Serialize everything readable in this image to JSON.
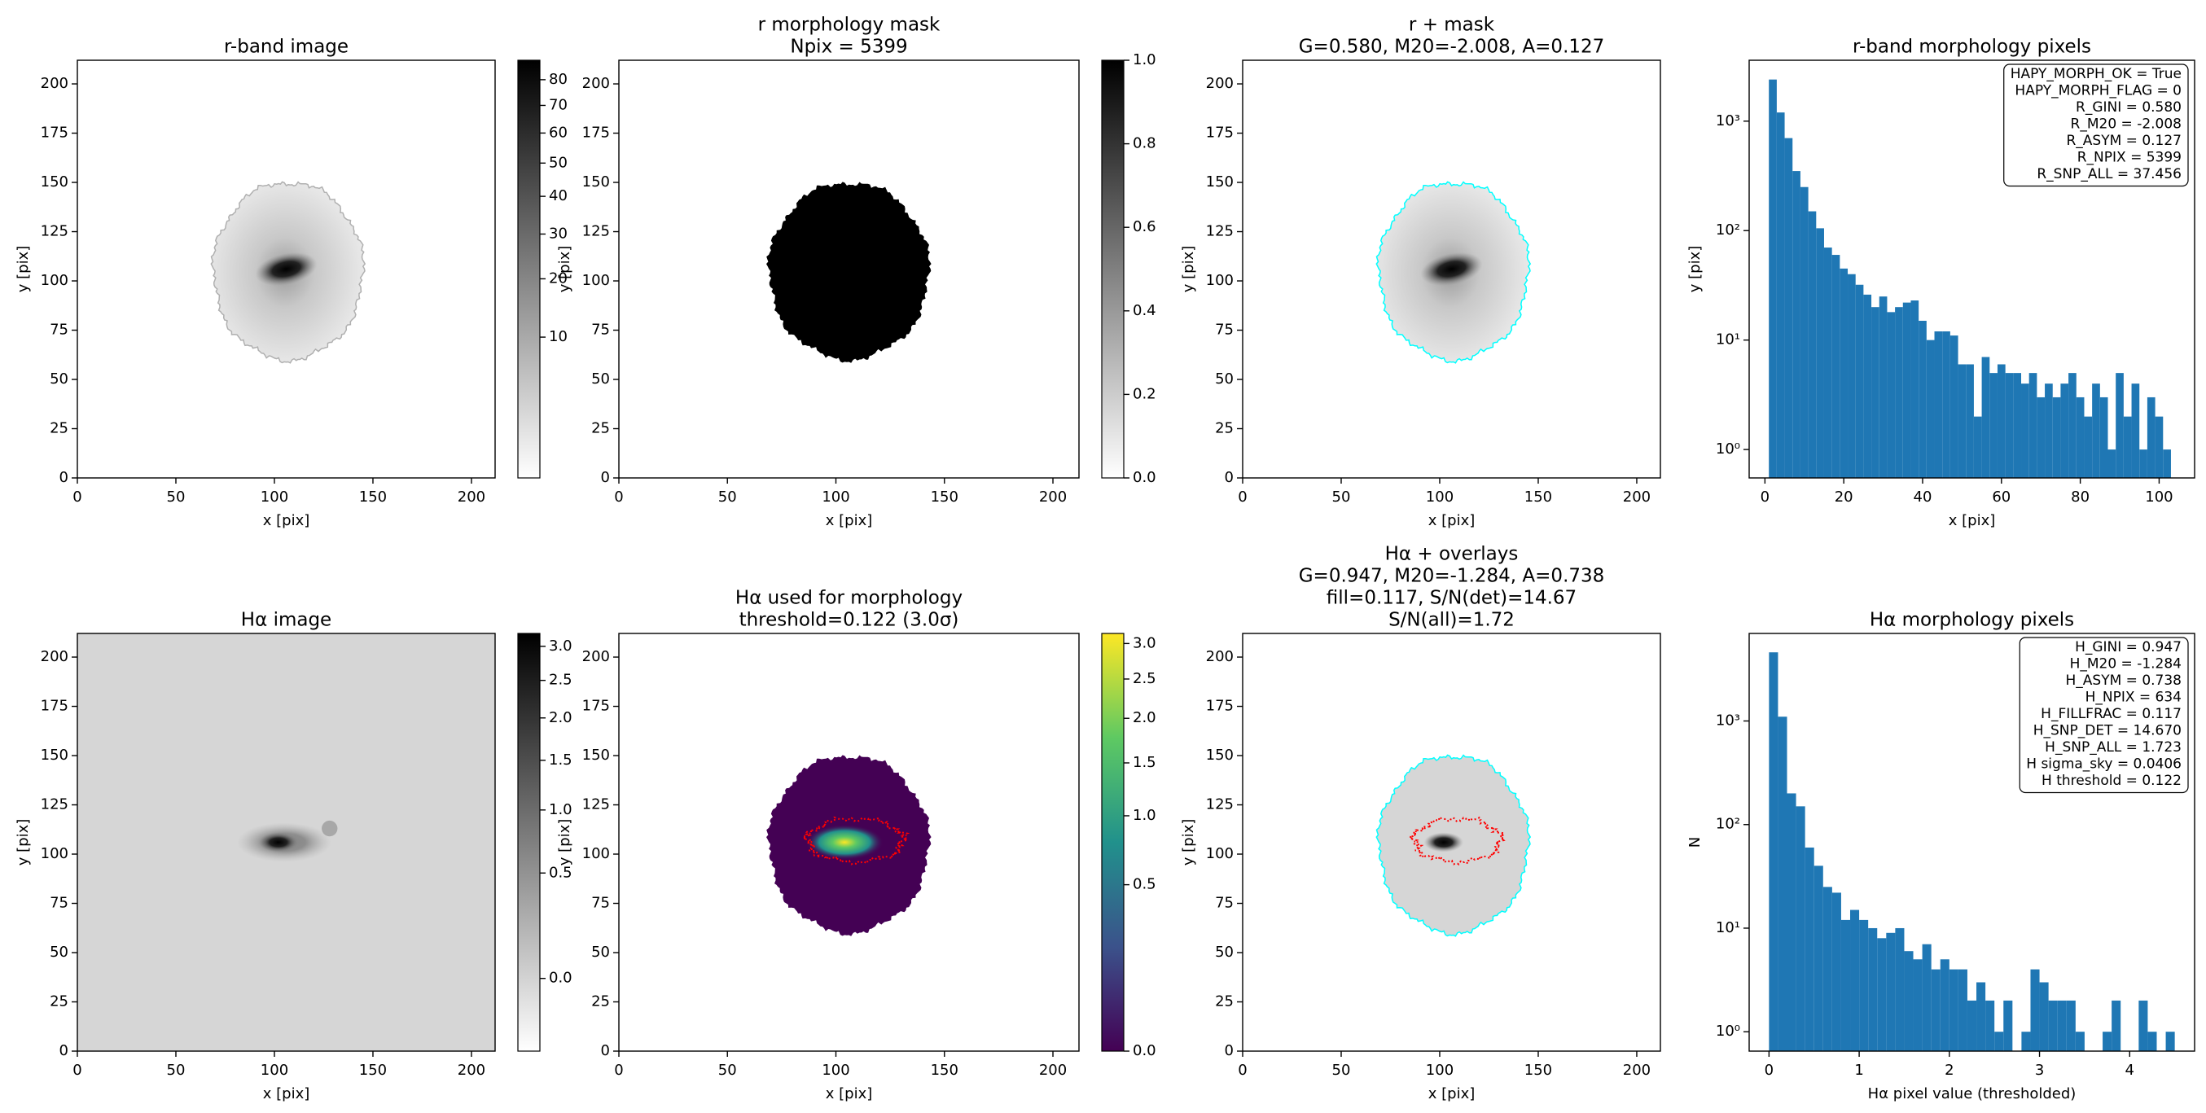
{
  "chart_data": [
    {
      "type": "image",
      "title_lines": [
        "r-band image"
      ],
      "xlabel": "x [pix]",
      "ylabel": "y [pix]",
      "xlim": [
        0,
        212
      ],
      "ylim": [
        0,
        212
      ],
      "xticks": [
        0,
        50,
        100,
        150,
        200
      ],
      "yticks": [
        0,
        25,
        50,
        75,
        100,
        125,
        150,
        175,
        200
      ],
      "cmap": "gray_r",
      "colorbar": {
        "lim": [
          0,
          88
        ],
        "scale": "sqrt",
        "ticks": [
          10,
          20,
          30,
          40,
          50,
          60,
          70,
          80
        ]
      }
    },
    {
      "type": "image",
      "title_lines": [
        "r morphology mask",
        "Npix = 5399"
      ],
      "xlabel": "x [pix]",
      "ylabel": "y [pix]",
      "xlim": [
        0,
        212
      ],
      "ylim": [
        0,
        212
      ],
      "xticks": [
        0,
        50,
        100,
        150,
        200
      ],
      "yticks": [
        0,
        25,
        50,
        75,
        100,
        125,
        150,
        175,
        200
      ],
      "cmap": "gray_r",
      "colorbar": {
        "lim": [
          0,
          1
        ],
        "scale": "linear",
        "ticks": [
          {
            "value": 0,
            "label": "0.0"
          },
          0.2,
          0.4,
          0.6,
          0.8,
          {
            "value": 1,
            "label": "1.0"
          }
        ]
      }
    },
    {
      "type": "image",
      "title_lines": [
        "r + mask",
        "G=0.580, M20=-2.008, A=0.127"
      ],
      "xlabel": "x [pix]",
      "ylabel": "y [pix]",
      "xlim": [
        0,
        212
      ],
      "ylim": [
        0,
        212
      ],
      "xticks": [
        0,
        50,
        100,
        150,
        200
      ],
      "yticks": [
        0,
        25,
        50,
        75,
        100,
        125,
        150,
        175,
        200
      ],
      "cmap": "gray_r",
      "contour_color": "#00ffff"
    },
    {
      "type": "histogram",
      "title_lines": [
        "r-band morphology pixels"
      ],
      "xlabel": "x [pix]",
      "ylabel": "y [pix]",
      "bins": [
        1,
        3,
        5,
        7,
        9,
        11,
        13,
        15,
        17,
        19,
        21,
        23,
        25,
        27,
        29,
        31,
        33,
        35,
        37,
        39,
        41,
        43,
        45,
        47,
        49,
        51,
        53,
        55,
        57,
        59,
        61,
        63,
        65,
        67,
        69,
        71,
        73,
        75,
        77,
        79,
        81,
        83,
        85,
        87,
        89,
        91,
        93,
        95,
        97,
        99,
        101,
        103
      ],
      "values": [
        2400,
        1200,
        700,
        350,
        250,
        150,
        105,
        70,
        60,
        45,
        40,
        32,
        26,
        20,
        25,
        18,
        20,
        22,
        23,
        15,
        10,
        12,
        12,
        11,
        6,
        6,
        2,
        7,
        5,
        6,
        5,
        5,
        4,
        5,
        3,
        4,
        3,
        4,
        5,
        3,
        2,
        4,
        3,
        1,
        5,
        2,
        4,
        1,
        3,
        2,
        1
      ],
      "color": "#1f77b4",
      "yscale": "log",
      "xlim": [
        -4,
        109
      ],
      "ylim": [
        0.55,
        3600
      ],
      "xticks": [
        0,
        20,
        40,
        60,
        80,
        100
      ],
      "yticks": [
        {
          "value": 1,
          "label": "10⁰"
        },
        {
          "value": 10,
          "label": "10¹"
        },
        {
          "value": 100,
          "label": "10²"
        },
        {
          "value": 1000,
          "label": "10³"
        }
      ],
      "annotation_lines": [
        "HAPY_MORPH_OK = True",
        "HAPY_MORPH_FLAG = 0",
        "R_GINI = 0.580",
        "R_M20 = -2.008",
        "R_ASYM = 0.127",
        "R_NPIX = 5399",
        "R_SNP_ALL = 37.456"
      ]
    },
    {
      "type": "image",
      "title_lines": [
        "Hα image"
      ],
      "xlabel": "x [pix]",
      "ylabel": "y [pix]",
      "xlim": [
        0,
        212
      ],
      "ylim": [
        0,
        212
      ],
      "xticks": [
        0,
        50,
        100,
        150,
        200
      ],
      "yticks": [
        0,
        25,
        50,
        75,
        100,
        125,
        150,
        175,
        200
      ],
      "cmap": "gray_r",
      "colorbar": {
        "lim": [
          -0.1,
          3.2
        ],
        "scale": "sqrt",
        "ticks": [
          {
            "value": 0,
            "label": "0.0"
          },
          0.5,
          {
            "value": 1,
            "label": "1.0"
          },
          1.5,
          {
            "value": 2,
            "label": "2.0"
          },
          2.5,
          {
            "value": 3,
            "label": "3.0"
          }
        ]
      }
    },
    {
      "type": "image",
      "title_lines": [
        "Hα used for morphology",
        "threshold=0.122 (3.0σ)"
      ],
      "xlabel": "x [pix]",
      "ylabel": "y [pix]",
      "xlim": [
        0,
        212
      ],
      "ylim": [
        0,
        212
      ],
      "xticks": [
        0,
        50,
        100,
        150,
        200
      ],
      "yticks": [
        0,
        25,
        50,
        75,
        100,
        125,
        150,
        175,
        200
      ],
      "cmap": "viridis",
      "contour_color": "#ff0000",
      "colorbar": {
        "lim": [
          0,
          3.15
        ],
        "scale": "sqrt",
        "ticks": [
          {
            "value": 0,
            "label": "0.0"
          },
          0.5,
          {
            "value": 1,
            "label": "1.0"
          },
          1.5,
          {
            "value": 2,
            "label": "2.0"
          },
          2.5,
          {
            "value": 3,
            "label": "3.0"
          }
        ]
      }
    },
    {
      "type": "image",
      "title_lines": [
        "Hα + overlays",
        "G=0.947, M20=-1.284, A=0.738",
        "fill=0.117, S/N(det)=14.67",
        "S/N(all)=1.72"
      ],
      "xlabel": "x [pix]",
      "ylabel": "y [pix]",
      "xlim": [
        0,
        212
      ],
      "ylim": [
        0,
        212
      ],
      "xticks": [
        0,
        50,
        100,
        150,
        200
      ],
      "yticks": [
        0,
        25,
        50,
        75,
        100,
        125,
        150,
        175,
        200
      ],
      "cmap": "gray_r",
      "contour_color": "#00ffff"
    },
    {
      "type": "histogram",
      "title_lines": [
        "Hα morphology pixels"
      ],
      "xlabel": "Hα pixel value (thresholded)",
      "ylabel": "N",
      "bins": [
        0,
        0.1,
        0.2,
        0.3,
        0.4,
        0.5,
        0.6,
        0.7,
        0.8,
        0.9,
        1,
        1.1,
        1.2,
        1.3,
        1.4,
        1.5,
        1.6,
        1.7,
        1.8,
        1.9,
        2,
        2.1,
        2.2,
        2.3,
        2.4,
        2.5,
        2.6,
        2.7,
        2.8,
        2.9,
        3,
        3.1,
        3.2,
        3.3,
        3.4,
        3.5,
        3.6,
        3.7,
        3.8,
        3.9,
        4,
        4.1,
        4.2,
        4.3,
        4.4,
        4.5
      ],
      "values": [
        4600,
        1100,
        200,
        150,
        60,
        40,
        25,
        22,
        12,
        15,
        12,
        10,
        8,
        9,
        10,
        6,
        5,
        7,
        4,
        5,
        4,
        4,
        2,
        3,
        2,
        1,
        2,
        0,
        1,
        4,
        3,
        2,
        2,
        2,
        1,
        0,
        0,
        1,
        2,
        0,
        0,
        2,
        1,
        0,
        1
      ],
      "color": "#1f77b4",
      "yscale": "log",
      "xlim": [
        -0.22,
        4.72
      ],
      "ylim": [
        0.65,
        7000
      ],
      "xticks": [
        0,
        1,
        2,
        3,
        4
      ],
      "yticks": [
        {
          "value": 1,
          "label": "10⁰"
        },
        {
          "value": 10,
          "label": "10¹"
        },
        {
          "value": 100,
          "label": "10²"
        },
        {
          "value": 1000,
          "label": "10³"
        }
      ],
      "annotation_lines": [
        "H_GINI = 0.947",
        "H_M20 = -1.284",
        "H_ASYM = 0.738",
        "H_NPIX = 634",
        "H_FILLFRAC = 0.117",
        "H_SNP_DET = 14.670",
        "H_SNP_ALL = 1.723",
        "H sigma_sky = 0.0406",
        "H threshold = 0.122"
      ]
    }
  ]
}
